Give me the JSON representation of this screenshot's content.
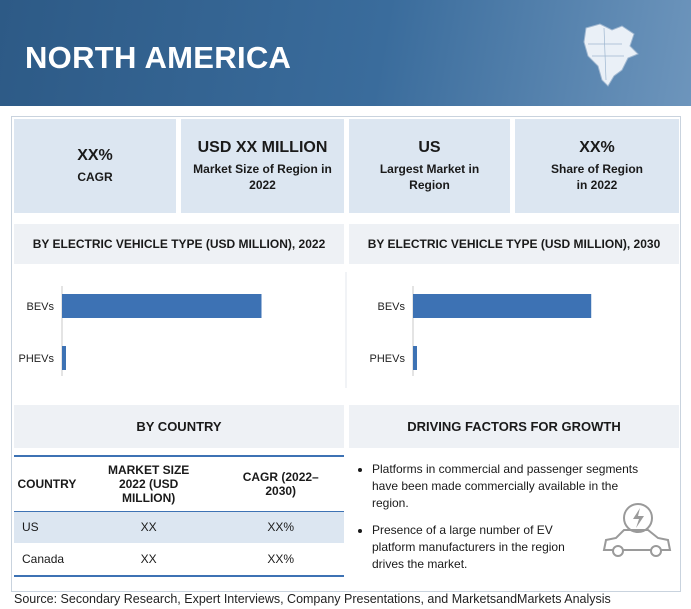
{
  "header": {
    "title": "NORTH AMERICA"
  },
  "stats": [
    {
      "value": "XX%",
      "label": "CAGR"
    },
    {
      "value": "USD XX MILLION",
      "label": "Market Size of Region in 2022"
    },
    {
      "value": "US",
      "label": "Largest Market in Region"
    },
    {
      "value": "XX%",
      "label": "Share of Region in 2022"
    }
  ],
  "chart_data": [
    {
      "type": "bar",
      "orientation": "horizontal",
      "title": "BY ELECTRIC VEHICLE TYPE (USD MILLION), 2022",
      "categories": [
        "BEVs",
        "PHEVs"
      ],
      "values": [
        75,
        1.5
      ],
      "color": "#3d72b4",
      "xlim": [
        0,
        100
      ]
    },
    {
      "type": "bar",
      "orientation": "horizontal",
      "title": "BY ELECTRIC VEHICLE TYPE (USD MILLION), 2030",
      "categories": [
        "BEVs",
        "PHEVs"
      ],
      "values": [
        67,
        1.5
      ],
      "color": "#3d72b4",
      "xlim": [
        0,
        100
      ]
    }
  ],
  "country_section": {
    "title": "BY COUNTRY",
    "columns": [
      "COUNTRY",
      "MARKET SIZE 2022 (USD MILLION)",
      "CAGR (2022–2030)"
    ],
    "rows": [
      [
        "US",
        "XX",
        "XX%"
      ],
      [
        "Canada",
        "XX",
        "XX%"
      ]
    ]
  },
  "drivers": {
    "title": "DRIVING FACTORS FOR GROWTH",
    "items": [
      "Platforms in commercial and passenger segments have been made commercially available in the region.",
      "Presence of a large number of EV platform manufacturers in the region drives the market."
    ]
  },
  "source": "Source: Secondary Research, Expert Interviews, Company Presentations, and MarketsandMarkets Analysis"
}
